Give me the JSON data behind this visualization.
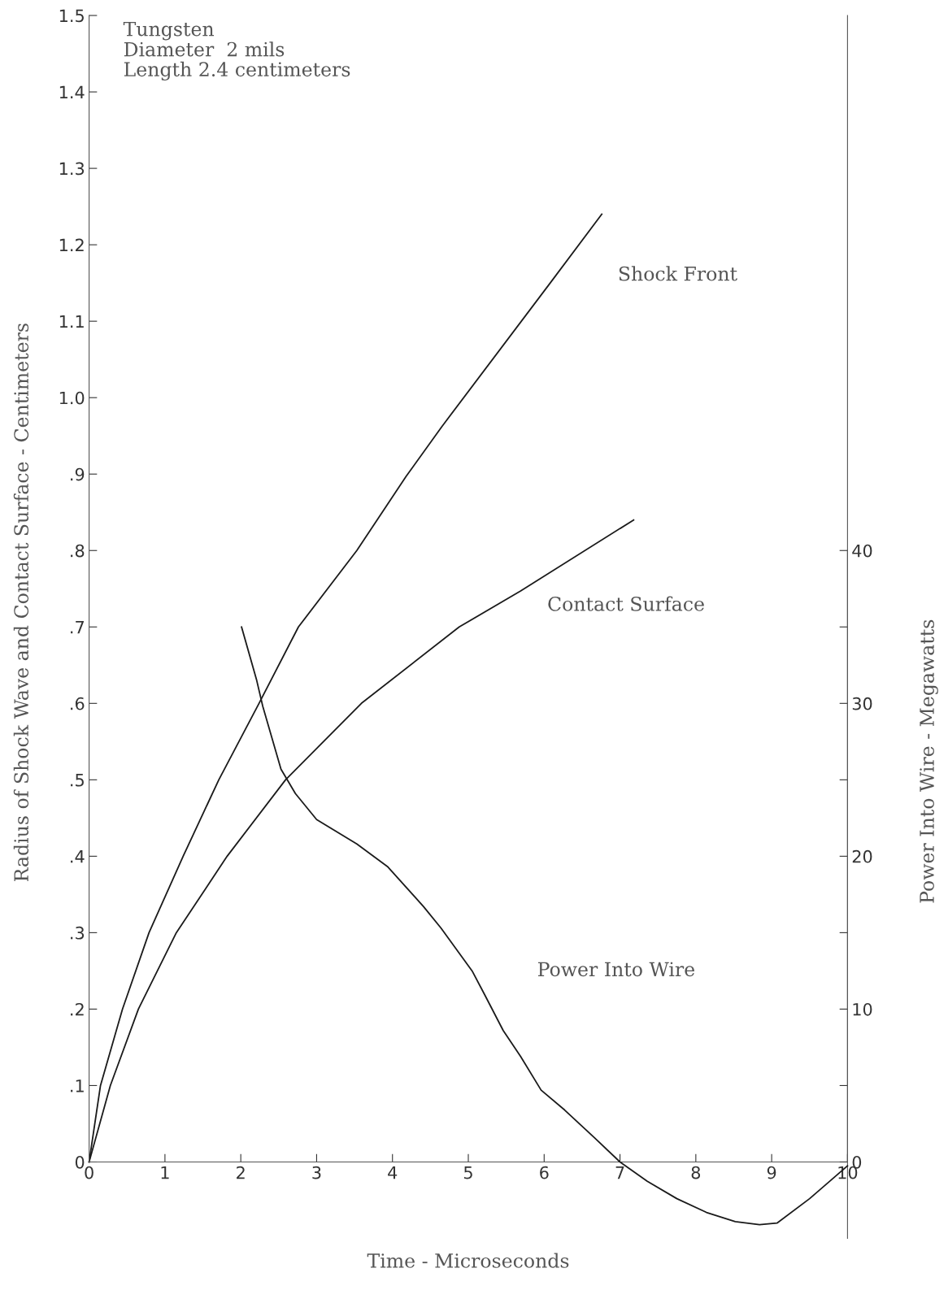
{
  "chart_data": {
    "type": "line",
    "xlabel": "Time - Microseconds",
    "ylabel": "Radius of Shock Wave and Contact Surface - Centimeters",
    "y2label": "Power Into Wire - Megawatts",
    "xlim": [
      0,
      10
    ],
    "xticks": [
      0,
      1,
      2,
      3,
      4,
      5,
      6,
      7,
      8,
      9,
      10
    ],
    "ylim": [
      -0.1,
      1.5
    ],
    "yticks": [
      0,
      {
        "value": 0.1,
        "label": ".1"
      },
      {
        "value": 0.2,
        "label": ".2"
      },
      {
        "value": 0.3,
        "label": ".3"
      },
      {
        "value": 0.4,
        "label": ".4"
      },
      {
        "value": 0.5,
        "label": ".5"
      },
      {
        "value": 0.6,
        "label": ".6"
      },
      {
        "value": 0.7,
        "label": ".7"
      },
      {
        "value": 0.8,
        "label": ".8"
      },
      {
        "value": 0.9,
        "label": ".9"
      },
      {
        "value": 1.0,
        "label": "1.0"
      },
      1.1,
      1.2,
      1.3,
      1.4,
      1.5
    ],
    "y2lim": [
      -5,
      75
    ],
    "y2ticks": [
      0,
      {
        "value": 5,
        "label": null
      },
      10,
      {
        "value": 15,
        "label": null
      },
      20,
      {
        "value": 25,
        "label": null
      },
      30,
      {
        "value": 35,
        "label": null
      },
      40
    ],
    "grid": false,
    "legend": false,
    "marker": "none",
    "line_style": "solid",
    "series": [
      {
        "name": "Shock Front",
        "color": "#1a1a1a",
        "x": [
          0,
          0.15,
          0.44,
          0.79,
          1.24,
          1.71,
          2.24,
          2.76,
          3.53,
          4.18,
          4.65,
          6.08,
          6.76
        ],
        "values": [
          0,
          0.1,
          0.2,
          0.3,
          0.4,
          0.5,
          0.6,
          0.7,
          0.8,
          0.897,
          0.962,
          1.15,
          1.24
        ]
      },
      {
        "name": "Contact Surface",
        "color": "#1a1a1a",
        "x": [
          0,
          0.28,
          0.65,
          1.15,
          1.82,
          2.59,
          3.59,
          4.88,
          5.69,
          7.18
        ],
        "values": [
          0,
          0.1,
          0.2,
          0.3,
          0.4,
          0.5,
          0.6,
          0.7,
          0.747,
          0.84
        ]
      },
      {
        "name": "Power Into Wire",
        "color": "#1a1a1a",
        "axis": "y2",
        "x": [
          2.01,
          2.21,
          2.29,
          2.53,
          2.72,
          3.0,
          3.53,
          3.94,
          4.41,
          4.64,
          5.05,
          5.22,
          5.46,
          5.69,
          5.96,
          6.27,
          6.66,
          7.0,
          7.36,
          7.75,
          8.14,
          8.52,
          8.84,
          9.07,
          9.5,
          10.0
        ],
        "values": [
          35,
          31.5,
          29.8,
          25.7,
          24.1,
          22.4,
          20.8,
          19.3,
          16.7,
          15.3,
          12.5,
          10.9,
          8.6,
          6.9,
          4.7,
          3.4,
          1.6,
          0,
          -1.26,
          -2.4,
          -3.3,
          -3.9,
          -4.1,
          -4.0,
          -2.4,
          -0.25
        ]
      }
    ],
    "annotations": [
      "Tungsten\nDiameter  2 mils\nLength 2.4 centimeters"
    ]
  }
}
